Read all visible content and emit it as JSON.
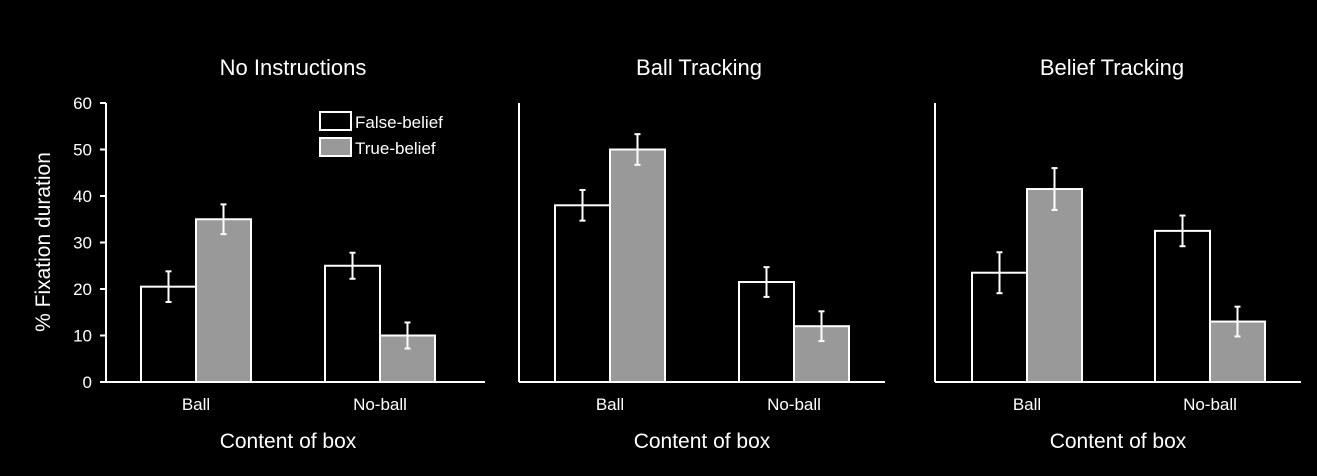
{
  "colors": {
    "background": "#000000",
    "false_belief": "#000000",
    "true_belief": "#999999",
    "stroke": "#ffffff"
  },
  "chart_data": [
    {
      "type": "bar",
      "title": "No Instructions",
      "xlabel": "Content of box",
      "ylabel": "% Fixation duration",
      "ylim": [
        0,
        60
      ],
      "yticks": [
        "0",
        "10",
        "20",
        "30",
        "40",
        "50",
        "60"
      ],
      "categories": [
        "Ball",
        "No-ball"
      ],
      "series": [
        {
          "name": "False-belief",
          "values": [
            20.5,
            25
          ],
          "errors": [
            3.3,
            2.8
          ]
        },
        {
          "name": "True-belief",
          "values": [
            35,
            10
          ],
          "errors": [
            3.2,
            2.8
          ]
        }
      ],
      "legend": {
        "position": "top-right"
      }
    },
    {
      "type": "bar",
      "title": "Ball Tracking",
      "xlabel": "Content of box",
      "ylim": [
        0,
        60
      ],
      "categories": [
        "Ball",
        "No-ball"
      ],
      "series": [
        {
          "name": "False-belief",
          "values": [
            38,
            21.5
          ],
          "errors": [
            3.3,
            3.2
          ]
        },
        {
          "name": "True-belief",
          "values": [
            50,
            12
          ],
          "errors": [
            3.3,
            3.2
          ]
        }
      ]
    },
    {
      "type": "bar",
      "title": "Belief Tracking",
      "xlabel": "Content of box",
      "ylim": [
        0,
        60
      ],
      "categories": [
        "Ball",
        "No-ball"
      ],
      "series": [
        {
          "name": "False-belief",
          "values": [
            23.5,
            32.5
          ],
          "errors": [
            4.4,
            3.3
          ]
        },
        {
          "name": "True-belief",
          "values": [
            41.5,
            13
          ],
          "errors": [
            4.5,
            3.2
          ]
        }
      ]
    }
  ]
}
